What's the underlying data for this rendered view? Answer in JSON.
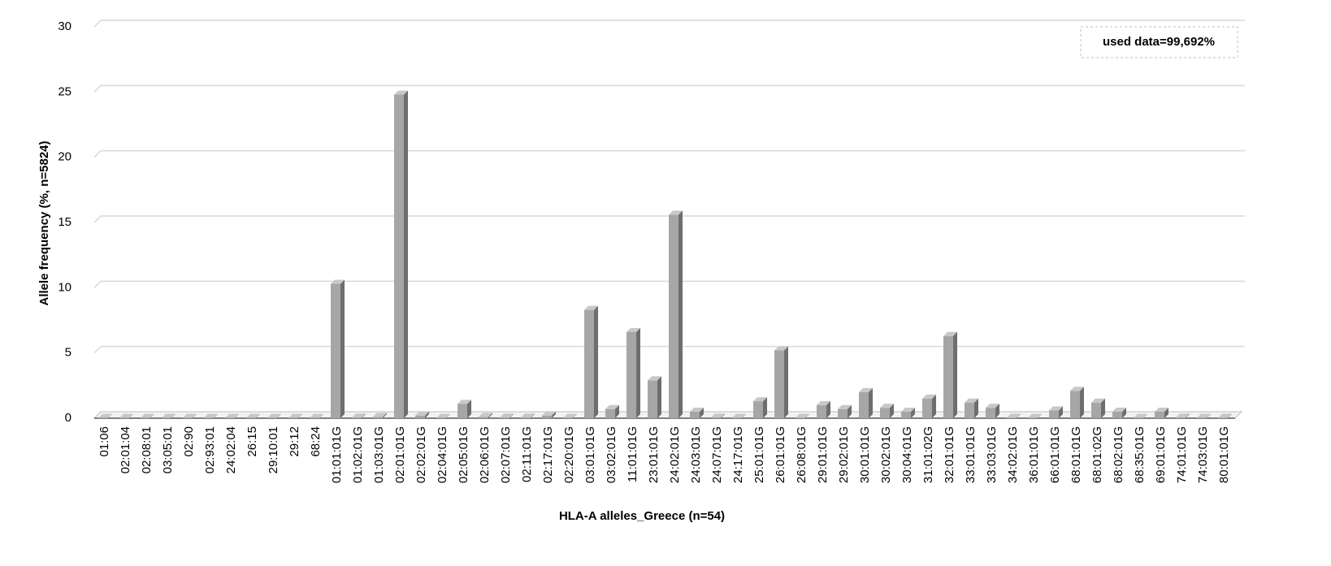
{
  "chart_data": {
    "type": "bar3d",
    "y_label": "Allele frequency (%, n=5824)",
    "x_label": "HLA-A alleles_Greece (n=54)",
    "annotation": "used data=99,692%",
    "categories": [
      "01:06",
      "02:01:04",
      "02:08:01",
      "03:05:01",
      "02:90",
      "02:93:01",
      "24:02:04",
      "26:15",
      "29:10:01",
      "29:12",
      "68:24",
      "01:01:01G",
      "01:02:01G",
      "01:03:01G",
      "02:01:01G",
      "02:02:01G",
      "02:04:01G",
      "02:05:01G",
      "02:06:01G",
      "02:07:01G",
      "02:11:01G",
      "02:17:01G",
      "02:20:01G",
      "03:01:01G",
      "03:02:01G",
      "11:01:01G",
      "23:01:01G",
      "24:02:01G",
      "24:03:01G",
      "24:07:01G",
      "24:17:01G",
      "25:01:01G",
      "26:01:01G",
      "26:08:01G",
      "29:01:01G",
      "29:02:01G",
      "30:01:01G",
      "30:02:01G",
      "30:04:01G",
      "31:01:02G",
      "32:01:01G",
      "33:01:01G",
      "33:03:01G",
      "34:02:01G",
      "36:01:01G",
      "66:01:01G",
      "68:01:01G",
      "68:01:02G",
      "68:02:01G",
      "68:35:01G",
      "69:01:01G",
      "74:01:01G",
      "74:03:01G",
      "80:01:01G"
    ],
    "values": [
      0.02,
      0.02,
      0.02,
      0.02,
      0.02,
      0.02,
      0.02,
      0.02,
      0.02,
      0.02,
      0.02,
      10.3,
      0.05,
      0.1,
      24.8,
      0.2,
      0.02,
      1.1,
      0.1,
      0.05,
      0.05,
      0.2,
      0.02,
      8.3,
      0.7,
      6.6,
      2.9,
      15.6,
      0.5,
      0.05,
      0.02,
      1.3,
      5.2,
      0.03,
      1.0,
      0.7,
      2.0,
      0.8,
      0.5,
      1.5,
      6.3,
      1.2,
      0.8,
      0.03,
      0.02,
      0.6,
      2.1,
      1.2,
      0.5,
      0.02,
      0.5,
      0.05,
      0.02,
      0.03
    ],
    "color": "#a6a6a6",
    "ylim": [
      0,
      30
    ],
    "yticks": [
      0,
      5,
      10,
      15,
      20,
      25,
      30
    ],
    "grid": true
  }
}
